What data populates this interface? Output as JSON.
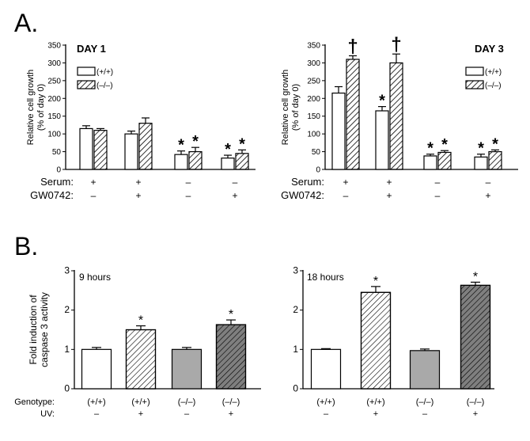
{
  "panel_labels": {
    "a": "A.",
    "b": "B."
  },
  "chart_data": [
    {
      "type": "bar",
      "title": "DAY 1",
      "ylabel": "Relative cell growth\n(% of day 0)",
      "ylim": [
        0,
        350
      ],
      "yticks": [
        "0",
        "50",
        "100",
        "150",
        "200",
        "250",
        "300",
        "350"
      ],
      "grid": false,
      "legend": "top-left",
      "series": [
        {
          "name": "(+/+)",
          "pattern": "open",
          "values": [
            115,
            100,
            42,
            32
          ],
          "errors": [
            8,
            8,
            10,
            8
          ]
        },
        {
          "name": "(–/–)",
          "pattern": "hatched",
          "values": [
            110,
            130,
            50,
            45
          ],
          "errors": [
            5,
            15,
            12,
            10
          ]
        }
      ],
      "markers": [
        {
          "series": 0,
          "group": 2,
          "symbol": "*"
        },
        {
          "series": 1,
          "group": 2,
          "symbol": "*"
        },
        {
          "series": 0,
          "group": 3,
          "symbol": "*"
        },
        {
          "series": 1,
          "group": 3,
          "symbol": "*"
        }
      ],
      "conditions": [
        {
          "label": "Serum:",
          "values": [
            "+",
            "+",
            "–",
            "–"
          ]
        },
        {
          "label": "GW0742:",
          "values": [
            "–",
            "+",
            "–",
            "+"
          ]
        }
      ]
    },
    {
      "type": "bar",
      "title": "DAY 3",
      "ylabel": "Relative cell growth\n(% of day 0)",
      "ylim": [
        0,
        350
      ],
      "yticks": [
        "0",
        "50",
        "100",
        "150",
        "200",
        "250",
        "300",
        "350"
      ],
      "grid": false,
      "legend": "top-right",
      "series": [
        {
          "name": "(+/+)",
          "pattern": "open",
          "values": [
            215,
            165,
            38,
            35
          ],
          "errors": [
            18,
            12,
            5,
            8
          ]
        },
        {
          "name": "(–/–)",
          "pattern": "hatched",
          "values": [
            310,
            300,
            48,
            50
          ],
          "errors": [
            10,
            25,
            5,
            5
          ]
        }
      ],
      "markers": [
        {
          "series": 1,
          "group": 0,
          "symbol": "†"
        },
        {
          "series": 1,
          "group": 1,
          "symbol": "†"
        },
        {
          "series": 0,
          "group": 1,
          "symbol": "*"
        },
        {
          "series": 0,
          "group": 2,
          "symbol": "*"
        },
        {
          "series": 1,
          "group": 2,
          "symbol": "*"
        },
        {
          "series": 0,
          "group": 3,
          "symbol": "*"
        },
        {
          "series": 1,
          "group": 3,
          "symbol": "*"
        }
      ],
      "conditions": [
        {
          "label": "Serum:",
          "values": [
            "+",
            "+",
            "–",
            "–"
          ]
        },
        {
          "label": "GW0742:",
          "values": [
            "–",
            "+",
            "–",
            "+"
          ]
        }
      ]
    },
    {
      "type": "bar",
      "title": "9 hours",
      "ylabel": "Fold induction of\ncaspase 3 activity",
      "ylim": [
        0,
        3
      ],
      "yticks": [
        "0",
        "1",
        "2",
        "3"
      ],
      "grid": false,
      "bars": [
        {
          "value": 1.0,
          "error": 0.05,
          "fill": "#ffffff",
          "hatch": false,
          "star": false
        },
        {
          "value": 1.5,
          "error": 0.1,
          "fill": "#ffffff",
          "hatch": true,
          "star": true
        },
        {
          "value": 1.0,
          "error": 0.05,
          "fill": "#a9a9a9",
          "hatch": false,
          "star": false
        },
        {
          "value": 1.63,
          "error": 0.12,
          "fill": "#7f7f7f",
          "hatch": true,
          "star": true
        }
      ],
      "conditions": [
        {
          "label": "Genotype:",
          "values": [
            "(+/+)",
            "(+/+)",
            "(–/–)",
            "(–/–)"
          ]
        },
        {
          "label": "UV:",
          "values": [
            "–",
            "+",
            "–",
            "+"
          ]
        }
      ]
    },
    {
      "type": "bar",
      "title": "18 hours",
      "ylabel": "",
      "ylim": [
        0,
        3
      ],
      "yticks": [
        "0",
        "1",
        "2",
        "3"
      ],
      "grid": false,
      "bars": [
        {
          "value": 1.0,
          "error": 0.02,
          "fill": "#ffffff",
          "hatch": false,
          "star": false
        },
        {
          "value": 2.45,
          "error": 0.15,
          "fill": "#ffffff",
          "hatch": true,
          "star": true
        },
        {
          "value": 0.97,
          "error": 0.04,
          "fill": "#a9a9a9",
          "hatch": false,
          "star": false
        },
        {
          "value": 2.63,
          "error": 0.08,
          "fill": "#7f7f7f",
          "hatch": true,
          "star": true
        }
      ],
      "conditions": [
        {
          "label": "",
          "values": [
            "(+/+)",
            "(+/+)",
            "(–/–)",
            "(–/–)"
          ]
        },
        {
          "label": "",
          "values": [
            "–",
            "+",
            "–",
            "+"
          ]
        }
      ]
    }
  ]
}
